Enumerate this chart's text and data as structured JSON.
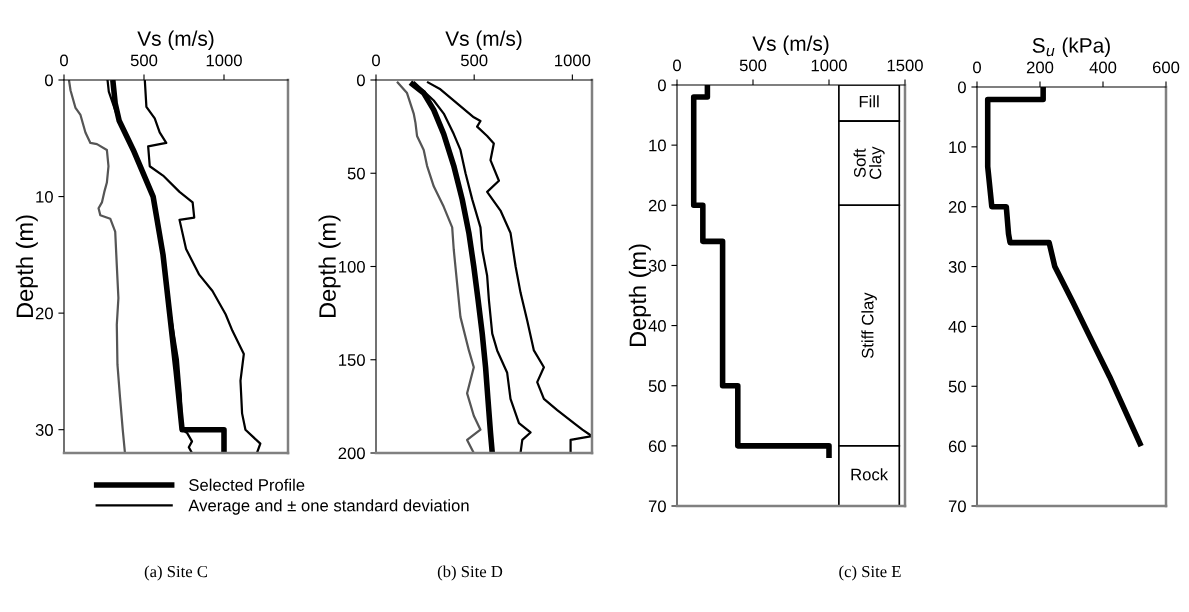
{
  "chart_data": [
    {
      "type": "line",
      "xlabel": "Vs (m/s)",
      "ylabel": "Depth (m)",
      "xlim": [
        0,
        1400
      ],
      "xticks": [
        0,
        500,
        1000
      ],
      "ylim": [
        32,
        0
      ],
      "yticks": [
        0,
        10,
        20,
        30
      ],
      "grid": false,
      "legend": "bottom",
      "annotations": [
        "(a) Site C"
      ],
      "series": [
        {
          "name": "Selected Profile",
          "color": "#000000",
          "x": [
            305,
            320,
            345,
            433,
            557,
            619,
            660,
            701,
            738,
            1000,
            1000
          ],
          "values": [
            0,
            2,
            3.5,
            6,
            10,
            15,
            20,
            25,
            30,
            30,
            32
          ]
        },
        {
          "name": "Average and ± one standard deviation",
          "color": "#000000",
          "x": [
            272,
            280,
            330,
            433,
            557,
            619,
            665,
            712,
            730,
            738,
            770,
            800,
            780,
            800
          ],
          "values": [
            0,
            1,
            3,
            6,
            10,
            15,
            20,
            24,
            27,
            30,
            30.3,
            31,
            31.5,
            32
          ]
        },
        {
          "color": "#555555",
          "x": [
            31,
            41,
            72,
            103,
            134,
            165,
            206,
            268,
            278,
            268,
            252,
            237,
            216,
            227,
            289,
            320,
            330,
            340,
            330,
            334,
            350,
            367,
            381
          ],
          "values": [
            0,
            0.9,
            2.4,
            3,
            4.5,
            5.4,
            5.5,
            6,
            7.4,
            8.8,
            9.6,
            10.5,
            11,
            11.6,
            11.9,
            13,
            15.9,
            18.7,
            21,
            24.4,
            27.2,
            30,
            32
          ]
        },
        {
          "color": "#000000",
          "x": [
            505,
            515,
            567,
            598,
            639,
            526,
            536,
            619,
            722,
            804,
            814,
            722,
            763,
            845,
            928,
            1010,
            1052,
            1124,
            1103,
            1113,
            1134,
            1227,
            1206
          ],
          "values": [
            0,
            2.3,
            3.3,
            4.5,
            5.4,
            5.7,
            7.4,
            8.2,
            9.6,
            10.5,
            11.8,
            12,
            14.5,
            16.7,
            18.1,
            20.1,
            21.5,
            23.5,
            25.8,
            28.6,
            30,
            31.2,
            32
          ]
        }
      ]
    },
    {
      "type": "line",
      "xlabel": "Vs (m/s)",
      "ylabel": "Depth (m)",
      "xlim": [
        0,
        1100
      ],
      "xticks": [
        0,
        500,
        1000
      ],
      "ylim": [
        200,
        0
      ],
      "yticks": [
        0,
        50,
        100,
        150,
        200
      ],
      "grid": false,
      "annotations": [
        "(b) Site D"
      ],
      "series": [
        {
          "color": "#000000",
          "x": [
            175,
            243,
            294,
            345,
            396,
            439,
            473,
            498,
            520,
            541,
            558,
            570,
            583,
            592
          ],
          "values": [
            1.4,
            7,
            16,
            29,
            46,
            64,
            82,
            100,
            118,
            136,
            154,
            171,
            189,
            200
          ]
        },
        {
          "color": "#000000",
          "x": [
            192,
            294,
            345,
            396,
            430,
            456,
            490,
            532,
            541,
            566,
            575,
            592,
            617,
            668,
            685,
            728,
            787,
            745,
            736
          ],
          "values": [
            1,
            11,
            18,
            29,
            37.5,
            50,
            64,
            79,
            91,
            105,
            118,
            136,
            145,
            157,
            171,
            184,
            189,
            193,
            200
          ]
        },
        {
          "color": "#555555",
          "x": [
            107,
            158,
            192,
            201,
            209,
            243,
            260,
            294,
            345,
            388,
            396,
            413,
            430,
            473,
            498,
            464,
            498,
            532,
            464,
            498
          ],
          "values": [
            1,
            7,
            18,
            23,
            30,
            37.5,
            46,
            57,
            68,
            79,
            91,
            109,
            127,
            145,
            154,
            168,
            180,
            187.5,
            193,
            200
          ]
        },
        {
          "color": "#000000",
          "x": [
            260,
            328,
            413,
            498,
            532,
            515,
            566,
            600,
            583,
            626,
            566,
            634,
            685,
            711,
            736,
            770,
            804,
            855,
            821,
            855,
            923,
            1008,
            1051,
            1100,
            991,
            991
          ],
          "values": [
            1,
            5,
            12.5,
            20,
            22,
            25,
            30,
            34,
            43,
            54,
            60,
            70,
            82,
            100,
            114,
            129,
            145,
            154,
            162,
            171,
            177,
            184,
            187.5,
            191,
            193,
            200
          ]
        }
      ]
    },
    {
      "type": "line",
      "xlabel": "Vs (m/s)",
      "ylabel": "Depth (m)",
      "xlim": [
        0,
        1500
      ],
      "xticks": [
        0,
        500,
        1000,
        1500
      ],
      "ylim": [
        70,
        0
      ],
      "yticks": [
        0,
        10,
        20,
        30,
        40,
        50,
        60,
        70
      ],
      "grid": false,
      "annotations": [
        "(c) Site E"
      ],
      "bands": [
        {
          "axis": "y",
          "from": 0,
          "to": 6,
          "label": "Fill",
          "color": "#ffffff"
        },
        {
          "axis": "y",
          "from": 6,
          "to": 20,
          "label": "Soft\nClay",
          "color": "#ffffff"
        },
        {
          "axis": "y",
          "from": 20,
          "to": 60,
          "label": "Stiff Clay",
          "color": "#ffffff"
        },
        {
          "axis": "y",
          "from": 60,
          "to": 70,
          "label": "Rock",
          "color": "#ffffff"
        }
      ],
      "series": [
        {
          "color": "#000000",
          "x": [
            200,
            200,
            110,
            110,
            170,
            170,
            300,
            300,
            400,
            400,
            1000,
            1000
          ],
          "values": [
            0,
            2,
            2,
            20,
            20,
            26,
            26,
            50,
            50,
            60,
            60,
            62
          ]
        }
      ]
    },
    {
      "type": "line",
      "xlabel": "S$_{u}$ (kPa)",
      "xlim": [
        0,
        600
      ],
      "xticks": [
        0,
        200,
        400,
        600
      ],
      "ylim": [
        70,
        0
      ],
      "yticks": [
        0,
        10,
        20,
        30,
        40,
        50,
        60,
        70
      ],
      "grid": false,
      "series": [
        {
          "color": "#000000",
          "x": [
            210,
            210,
            34,
            34,
            47,
            93,
            100,
            105,
            229,
            247,
            305,
            358,
            421,
            521
          ],
          "values": [
            0,
            2.1,
            2.1,
            13.3,
            20,
            20,
            24.5,
            26,
            26,
            30,
            36,
            41.7,
            48.4,
            60
          ]
        }
      ]
    }
  ]
}
